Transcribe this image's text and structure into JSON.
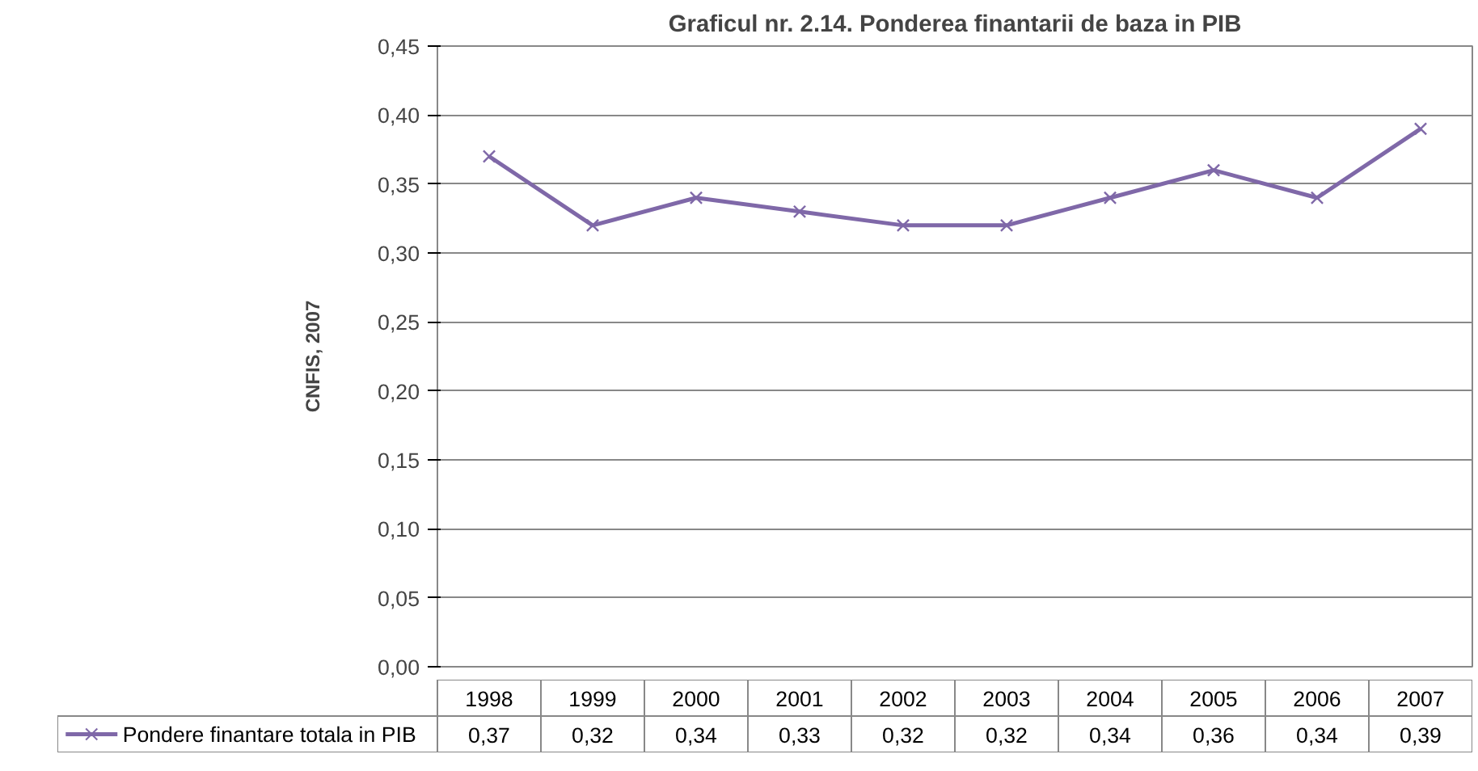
{
  "chart_data": {
    "type": "line",
    "title": "Graficul nr. 2.14. Ponderea finantarii de baza in PIB",
    "ylabel": "CNFIS, 2007",
    "categories": [
      "1998",
      "1999",
      "2000",
      "2001",
      "2002",
      "2003",
      "2004",
      "2005",
      "2006",
      "2007"
    ],
    "series": [
      {
        "name": "Pondere finantare totala in PIB",
        "color": "#7f68a8",
        "values": [
          0.37,
          0.32,
          0.34,
          0.33,
          0.32,
          0.32,
          0.34,
          0.36,
          0.34,
          0.39
        ],
        "value_labels": [
          "0,37",
          "0,32",
          "0,34",
          "0,33",
          "0,32",
          "0,32",
          "0,34",
          "0,36",
          "0,34",
          "0,39"
        ]
      }
    ],
    "ylim": [
      0,
      0.45
    ],
    "yticks": [
      {
        "value": 0,
        "label": "0,00"
      },
      {
        "value": 0.05,
        "label": "0,05"
      },
      {
        "value": 0.1,
        "label": "0,10"
      },
      {
        "value": 0.15,
        "label": "0,15"
      },
      {
        "value": 0.2,
        "label": "0,20"
      },
      {
        "value": 0.25,
        "label": "0,25"
      },
      {
        "value": 0.3,
        "label": "0,30"
      },
      {
        "value": 0.35,
        "label": "0,35"
      },
      {
        "value": 0.4,
        "label": "0,40"
      },
      {
        "value": 0.45,
        "label": "0,45"
      }
    ],
    "grid": "y",
    "legend": "bottom",
    "marker": "cross",
    "line_style": "solid",
    "data_labels": true
  }
}
